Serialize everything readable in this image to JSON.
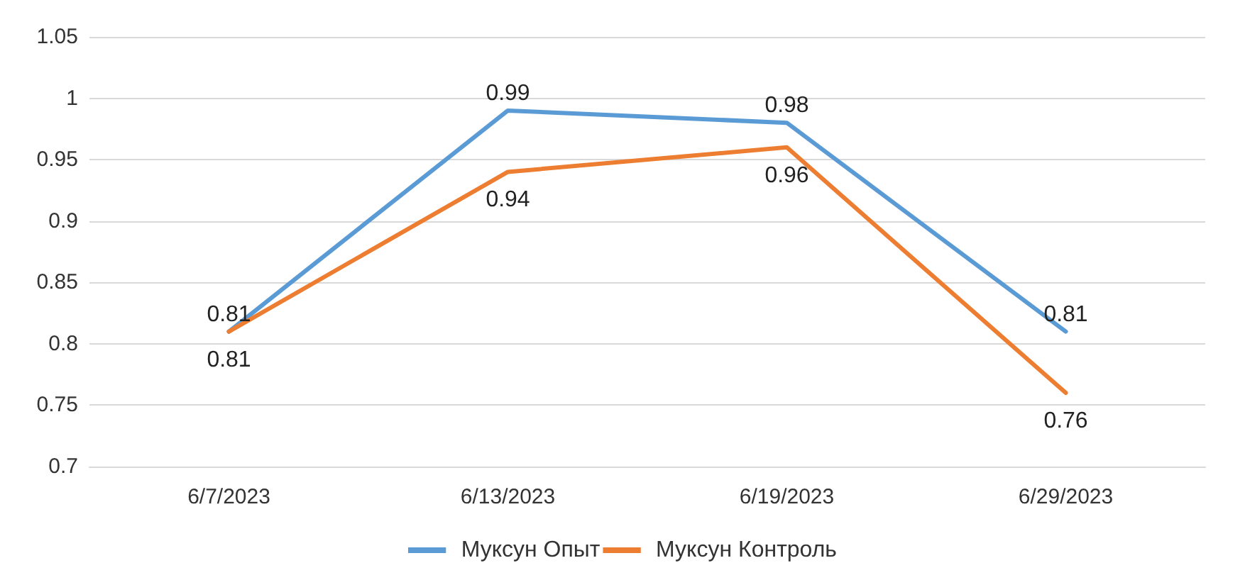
{
  "chart_data": {
    "type": "line",
    "categories": [
      "6/7/2023",
      "6/13/2023",
      "6/19/2023",
      "6/29/2023"
    ],
    "series": [
      {
        "name": "Муксун Опыт",
        "color": "#5b9bd5",
        "values": [
          0.81,
          0.99,
          0.98,
          0.81
        ]
      },
      {
        "name": "Муксун Контроль",
        "color": "#ed7d31",
        "values": [
          0.81,
          0.94,
          0.96,
          0.76
        ]
      }
    ],
    "ylim": [
      0.7,
      1.05
    ],
    "yticks": [
      0.7,
      0.75,
      0.8,
      0.85,
      0.9,
      0.95,
      1,
      1.05
    ],
    "grid": "y",
    "legend": "bottom",
    "marker": "none",
    "line_style": "solid",
    "data_labels": true
  }
}
